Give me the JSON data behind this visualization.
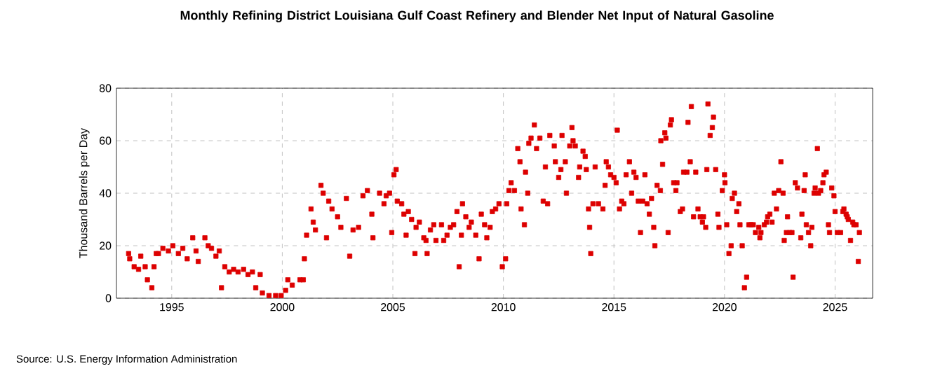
{
  "chart_data": {
    "type": "scatter",
    "title": "Monthly Refining District Louisiana Gulf Coast Refinery and Blender Net Input of Natural Gasoline",
    "ylabel": "Thousand Barrels per Day",
    "annotations": [
      "Source: U.S. Energy Information Administration"
    ],
    "xlim": [
      1992.5,
      2026.7
    ],
    "ylim": [
      0,
      80
    ],
    "xticks": [
      1995,
      2000,
      2005,
      2010,
      2015,
      2020,
      2025
    ],
    "yticks": [
      0,
      20,
      40,
      60,
      80
    ],
    "grid": true,
    "marker": "square",
    "series": [
      {
        "color": "#dd0000",
        "x": [
          1993.05,
          1993.1,
          1993.3,
          1993.5,
          1993.6,
          1993.8,
          1993.9,
          1994.1,
          1994.2,
          1994.3,
          1994.4,
          1994.6,
          1994.85,
          1995.05,
          1995.3,
          1995.5,
          1995.7,
          1995.95,
          1996.1,
          1996.2,
          1996.5,
          1996.65,
          1996.8,
          1997.0,
          1997.15,
          1997.25,
          1997.4,
          1997.6,
          1997.8,
          1998.0,
          1998.25,
          1998.45,
          1998.65,
          1998.8,
          1999.0,
          1999.1,
          1999.4,
          1999.7,
          1999.95,
          2000.15,
          2000.25,
          2000.45,
          2000.8,
          2000.95,
          2001.0,
          2001.1,
          2001.3,
          2001.4,
          2001.5,
          2001.75,
          2001.85,
          2002.0,
          2002.1,
          2002.25,
          2002.5,
          2002.65,
          2002.9,
          2003.05,
          2003.2,
          2003.45,
          2003.65,
          2003.85,
          2004.05,
          2004.1,
          2004.4,
          2004.6,
          2004.7,
          2004.85,
          2004.95,
          2005.05,
          2005.15,
          2005.2,
          2005.4,
          2005.5,
          2005.6,
          2005.7,
          2005.85,
          2006.0,
          2006.05,
          2006.2,
          2006.4,
          2006.5,
          2006.55,
          2006.7,
          2006.85,
          2006.95,
          2007.2,
          2007.3,
          2007.45,
          2007.6,
          2007.75,
          2007.9,
          2008.0,
          2008.1,
          2008.15,
          2008.3,
          2008.45,
          2008.55,
          2008.75,
          2008.9,
          2009.0,
          2009.15,
          2009.25,
          2009.4,
          2009.5,
          2009.65,
          2009.8,
          2009.95,
          2010.1,
          2010.15,
          2010.25,
          2010.35,
          2010.5,
          2010.65,
          2010.75,
          2010.8,
          2010.95,
          2011.0,
          2011.1,
          2011.15,
          2011.25,
          2011.4,
          2011.5,
          2011.65,
          2011.8,
          2011.9,
          2012.0,
          2012.1,
          2012.3,
          2012.35,
          2012.5,
          2012.6,
          2012.65,
          2012.8,
          2012.85,
          2013.0,
          2013.1,
          2013.15,
          2013.25,
          2013.4,
          2013.45,
          2013.6,
          2013.7,
          2013.75,
          2013.85,
          2013.9,
          2013.95,
          2014.05,
          2014.15,
          2014.3,
          2014.5,
          2014.6,
          2014.65,
          2014.75,
          2014.85,
          2015.0,
          2015.1,
          2015.15,
          2015.25,
          2015.35,
          2015.45,
          2015.55,
          2015.7,
          2015.8,
          2015.9,
          2016.0,
          2016.1,
          2016.2,
          2016.3,
          2016.4,
          2016.5,
          2016.6,
          2016.7,
          2016.8,
          2016.85,
          2016.95,
          2017.1,
          2017.12,
          2017.2,
          2017.3,
          2017.35,
          2017.45,
          2017.55,
          2017.6,
          2017.7,
          2017.8,
          2017.85,
          2018.0,
          2018.1,
          2018.15,
          2018.3,
          2018.35,
          2018.45,
          2018.5,
          2018.6,
          2018.7,
          2018.8,
          2018.9,
          2019.0,
          2019.05,
          2019.15,
          2019.2,
          2019.25,
          2019.35,
          2019.45,
          2019.5,
          2019.6,
          2019.7,
          2019.75,
          2019.9,
          2020.0,
          2020.02,
          2020.1,
          2020.2,
          2020.3,
          2020.35,
          2020.45,
          2020.55,
          2020.65,
          2020.7,
          2020.8,
          2020.9,
          2021.0,
          2021.1,
          2021.2,
          2021.3,
          2021.4,
          2021.55,
          2021.6,
          2021.65,
          2021.8,
          2021.9,
          2021.95,
          2022.05,
          2022.15,
          2022.25,
          2022.35,
          2022.45,
          2022.55,
          2022.65,
          2022.7,
          2022.8,
          2022.85,
          2022.95,
          2023.05,
          2023.1,
          2023.2,
          2023.3,
          2023.45,
          2023.5,
          2023.6,
          2023.65,
          2023.7,
          2023.8,
          2023.9,
          2023.95,
          2024.05,
          2024.1,
          2024.2,
          2024.25,
          2024.35,
          2024.45,
          2024.5,
          2024.6,
          2024.7,
          2024.75,
          2024.85,
          2024.95,
          2025.0,
          2025.1,
          2025.25,
          2025.35,
          2025.4,
          2025.5,
          2025.55,
          2025.6,
          2025.7,
          2025.8,
          2025.85,
          2025.95,
          2026.05,
          2026.1
        ],
        "values": [
          17,
          15,
          12,
          11,
          16,
          12,
          7,
          4,
          12,
          17,
          17,
          19,
          18,
          20,
          17,
          19,
          15,
          23,
          18,
          14,
          23,
          20,
          19,
          16,
          18,
          4,
          12,
          10,
          11,
          10,
          11,
          9,
          10,
          4,
          9,
          2,
          1,
          1,
          1,
          3,
          7,
          5,
          7,
          7,
          15,
          24,
          34,
          29,
          26,
          43,
          40,
          23,
          37,
          34,
          31,
          27,
          38,
          16,
          26,
          27,
          39,
          41,
          32,
          23,
          40,
          36,
          39,
          40,
          25,
          47,
          49,
          37,
          36,
          32,
          24,
          33,
          30,
          17,
          27,
          29,
          23,
          22,
          17,
          26,
          28,
          22,
          28,
          22,
          24,
          27,
          28,
          33,
          12,
          24,
          36,
          31,
          27,
          29,
          24,
          15,
          32,
          28,
          23,
          27,
          33,
          34,
          36,
          12,
          15,
          36,
          41,
          44,
          41,
          57,
          52,
          34,
          28,
          48,
          40,
          59,
          61,
          66,
          57,
          61,
          37,
          50,
          36,
          62,
          58,
          52,
          46,
          49,
          62,
          52,
          40,
          58,
          65,
          60,
          58,
          46,
          50,
          56,
          54,
          49,
          34,
          27,
          17,
          36,
          50,
          36,
          34,
          43,
          52,
          50,
          47,
          46,
          44,
          64,
          34,
          37,
          36,
          47,
          52,
          40,
          48,
          46,
          37,
          25,
          37,
          47,
          36,
          32,
          38,
          27,
          20,
          43,
          41,
          60,
          51,
          63,
          61,
          25,
          66,
          68,
          44,
          41,
          44,
          33,
          34,
          48,
          48,
          67,
          52,
          73,
          31,
          48,
          34,
          31,
          29,
          31,
          27,
          49,
          74,
          62,
          65,
          69,
          49,
          32,
          27,
          41,
          47,
          44,
          28,
          17,
          20,
          38,
          40,
          33,
          36,
          28,
          20,
          4,
          8,
          28,
          28,
          28,
          25,
          27,
          23,
          25,
          28,
          29,
          31,
          32,
          29,
          40,
          34,
          41,
          52,
          40,
          22,
          25,
          31,
          25,
          25,
          8,
          44,
          42,
          23,
          32,
          41,
          47,
          28,
          25,
          20,
          27,
          40,
          42,
          57,
          40,
          41,
          44,
          47,
          48,
          28,
          25,
          42,
          39,
          33,
          25,
          25,
          33,
          34,
          32,
          31,
          30,
          22,
          29,
          28,
          28,
          14,
          25
        ]
      }
    ]
  }
}
